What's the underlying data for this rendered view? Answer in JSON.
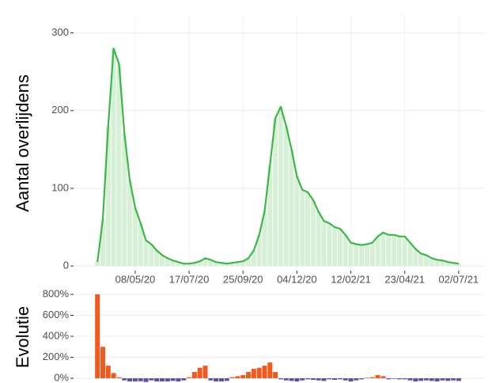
{
  "chart_data": [
    {
      "type": "line",
      "bars": true,
      "ylabel": "Aantal overlijdens",
      "color": "#3db54a",
      "bar_color": "#d6f0d6",
      "x": [
        "2020-03-20",
        "2020-03-27",
        "2020-04-03",
        "2020-04-10",
        "2020-04-17",
        "2020-04-24",
        "2020-05-01",
        "2020-05-08",
        "2020-05-15",
        "2020-05-22",
        "2020-05-29",
        "2020-06-05",
        "2020-06-12",
        "2020-06-19",
        "2020-06-26",
        "2020-07-03",
        "2020-07-10",
        "2020-07-17",
        "2020-07-24",
        "2020-07-31",
        "2020-08-07",
        "2020-08-14",
        "2020-08-21",
        "2020-08-28",
        "2020-09-04",
        "2020-09-11",
        "2020-09-18",
        "2020-09-25",
        "2020-10-02",
        "2020-10-09",
        "2020-10-16",
        "2020-10-23",
        "2020-10-30",
        "2020-11-06",
        "2020-11-13",
        "2020-11-20",
        "2020-11-27",
        "2020-12-04",
        "2020-12-11",
        "2020-12-18",
        "2020-12-25",
        "2021-01-01",
        "2021-01-08",
        "2021-01-15",
        "2021-01-22",
        "2021-01-29",
        "2021-02-05",
        "2021-02-12",
        "2021-02-19",
        "2021-02-26",
        "2021-03-05",
        "2021-03-12",
        "2021-03-19",
        "2021-03-26",
        "2021-04-02",
        "2021-04-09",
        "2021-04-16",
        "2021-04-23",
        "2021-04-30",
        "2021-05-07",
        "2021-05-14",
        "2021-05-21",
        "2021-05-28",
        "2021-06-04",
        "2021-06-11",
        "2021-06-18",
        "2021-06-25",
        "2021-07-02"
      ],
      "values": [
        5,
        60,
        180,
        280,
        260,
        170,
        110,
        75,
        55,
        33,
        28,
        20,
        14,
        10,
        7,
        5,
        3,
        3,
        4,
        6,
        10,
        8,
        5,
        4,
        3,
        4,
        5,
        6,
        10,
        20,
        40,
        70,
        130,
        190,
        205,
        180,
        150,
        115,
        98,
        95,
        85,
        70,
        58,
        55,
        50,
        48,
        40,
        30,
        28,
        27,
        28,
        30,
        38,
        43,
        40,
        40,
        38,
        38,
        30,
        22,
        16,
        14,
        10,
        8,
        7,
        5,
        4,
        3
      ],
      "xlim": [
        "2020-02-18",
        "2021-08-04"
      ],
      "xticks": [
        {
          "value": "2020-05-08",
          "label": "08/05/20"
        },
        {
          "value": "2020-07-17",
          "label": "17/07/20"
        },
        {
          "value": "2020-09-25",
          "label": "25/09/20"
        },
        {
          "value": "2020-12-04",
          "label": "04/12/20"
        },
        {
          "value": "2021-02-12",
          "label": "12/02/21"
        },
        {
          "value": "2021-04-23",
          "label": "23/04/21"
        },
        {
          "value": "2021-07-02",
          "label": "02/07/21"
        }
      ],
      "ylim": [
        -6,
        322
      ],
      "yticks": [
        0,
        100,
        200,
        300
      ],
      "grid": true
    },
    {
      "type": "bar",
      "ylabel": "Evolutie",
      "color_positive": "#f05a1e",
      "color_negative": "#5b4fa8",
      "x": [
        "2020-03-20",
        "2020-03-27",
        "2020-04-03",
        "2020-04-10",
        "2020-04-17",
        "2020-04-24",
        "2020-05-01",
        "2020-05-08",
        "2020-05-15",
        "2020-05-22",
        "2020-05-29",
        "2020-06-05",
        "2020-06-12",
        "2020-06-19",
        "2020-06-26",
        "2020-07-03",
        "2020-07-10",
        "2020-07-17",
        "2020-07-24",
        "2020-07-31",
        "2020-08-07",
        "2020-08-14",
        "2020-08-21",
        "2020-08-28",
        "2020-09-04",
        "2020-09-11",
        "2020-09-18",
        "2020-09-25",
        "2020-10-02",
        "2020-10-09",
        "2020-10-16",
        "2020-10-23",
        "2020-10-30",
        "2020-11-06",
        "2020-11-13",
        "2020-11-20",
        "2020-11-27",
        "2020-12-04",
        "2020-12-11",
        "2020-12-18",
        "2020-12-25",
        "2021-01-01",
        "2021-01-08",
        "2021-01-15",
        "2021-01-22",
        "2021-01-29",
        "2021-02-05",
        "2021-02-12",
        "2021-02-19",
        "2021-02-26",
        "2021-03-05",
        "2021-03-12",
        "2021-03-19",
        "2021-03-26",
        "2021-04-02",
        "2021-04-09",
        "2021-04-16",
        "2021-04-23",
        "2021-04-30",
        "2021-05-07",
        "2021-05-14",
        "2021-05-21",
        "2021-05-28",
        "2021-06-04",
        "2021-06-11",
        "2021-06-18",
        "2021-06-25",
        "2021-07-02"
      ],
      "values": [
        800,
        300,
        120,
        50,
        10,
        -20,
        -30,
        -30,
        -28,
        -35,
        -20,
        -30,
        -30,
        -30,
        -25,
        -30,
        -20,
        10,
        60,
        100,
        120,
        -20,
        -30,
        -30,
        -25,
        10,
        20,
        30,
        60,
        90,
        100,
        120,
        150,
        60,
        -10,
        -20,
        -25,
        -30,
        -20,
        -10,
        -15,
        -20,
        -25,
        -10,
        -15,
        -10,
        -20,
        -30,
        -20,
        -10,
        5,
        10,
        30,
        20,
        -10,
        -5,
        -10,
        -10,
        -20,
        -30,
        -25,
        -20,
        -25,
        -30,
        -20,
        -25,
        -20,
        -25
      ],
      "xlim": [
        "2020-02-18",
        "2021-08-04"
      ],
      "ylim": [
        -45,
        830
      ],
      "yticks": [
        {
          "value": 0,
          "label": "0%"
        },
        {
          "value": 200,
          "label": "200%"
        },
        {
          "value": 400,
          "label": "400%"
        },
        {
          "value": 600,
          "label": "600%"
        },
        {
          "value": 800,
          "label": "800%"
        }
      ],
      "grid": true
    }
  ]
}
